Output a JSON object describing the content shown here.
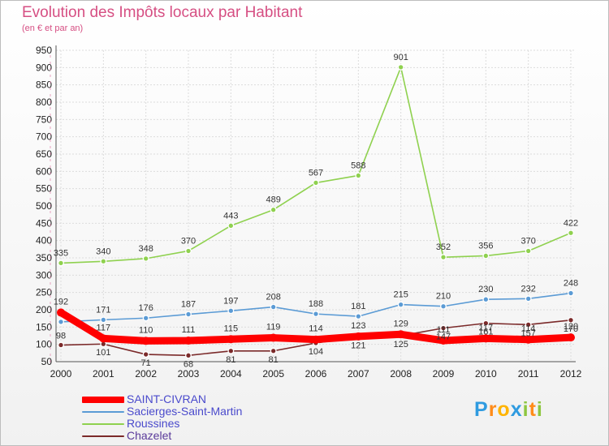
{
  "header": {
    "title": "Evolution des Impôts locaux par Habitant",
    "subtitle": "(en € et par an)"
  },
  "logo": {
    "letters": [
      "P",
      "r",
      "o",
      "x",
      "i",
      "t",
      "i"
    ],
    "colors": [
      "#2f9be0",
      "#ff8c1a",
      "#ffb400",
      "#2f9be0",
      "#8dc63f",
      "#ff8c1a",
      "#8dc63f"
    ]
  },
  "chart_data": {
    "type": "line",
    "title": "Evolution des Impôts locaux par Habitant",
    "subtitle": "(en € et par an)",
    "xlabel": "",
    "ylabel": "",
    "x": [
      "2000",
      "2001",
      "2002",
      "2003",
      "2004",
      "2005",
      "2006",
      "2007",
      "2008",
      "2009",
      "2010",
      "2011",
      "2012"
    ],
    "ylim": [
      50,
      950
    ],
    "yticks": [
      50,
      100,
      150,
      200,
      250,
      300,
      350,
      400,
      450,
      500,
      550,
      600,
      650,
      700,
      750,
      800,
      850,
      900,
      950
    ],
    "grid": true,
    "legend_position": "bottom-left",
    "series": [
      {
        "name": "Roussines",
        "color": "#8fd14f",
        "values": [
          335,
          340,
          348,
          370,
          443,
          489,
          567,
          588,
          901,
          352,
          356,
          370,
          422
        ],
        "labels": [
          "335",
          "340",
          "348",
          "370",
          "443",
          "489",
          "567",
          "588",
          "901",
          "352",
          "356",
          "370",
          "422"
        ]
      },
      {
        "name": "Sacierges-Saint-Martin",
        "color": "#5b9bd5",
        "values": [
          165,
          171,
          176,
          187,
          197,
          208,
          188,
          181,
          215,
          210,
          230,
          232,
          248
        ],
        "labels": [
          "",
          "171",
          "176",
          "187",
          "197",
          "208",
          "188",
          "181",
          "215",
          "210",
          "230",
          "232",
          "248"
        ]
      },
      {
        "name": "Chazelet",
        "color": "#7b2a2a",
        "values": [
          98,
          101,
          71,
          68,
          81,
          81,
          104,
          121,
          125,
          147,
          161,
          157,
          170
        ],
        "labels": [
          "98",
          "101",
          "71",
          "68",
          "81",
          "81",
          "104",
          "121",
          "125",
          "147",
          "161",
          "157",
          "170"
        ]
      },
      {
        "name": "SAINT-CIVRAN",
        "color": "#ff0000",
        "values": [
          192,
          117,
          110,
          111,
          115,
          119,
          114,
          123,
          129,
          111,
          117,
          114,
          120
        ],
        "labels": [
          "192",
          "117",
          "110",
          "111",
          "115",
          "119",
          "114",
          "123",
          "129",
          "111",
          "117",
          "114",
          "120"
        ]
      }
    ],
    "legend": [
      {
        "name": "SAINT-CIVRAN",
        "color": "#ff0000"
      },
      {
        "name": "Sacierges-Saint-Martin",
        "color": "#5b9bd5"
      },
      {
        "name": "Roussines",
        "color": "#8fd14f"
      },
      {
        "name": "Chazelet",
        "color": "#7b2a2a"
      }
    ]
  }
}
